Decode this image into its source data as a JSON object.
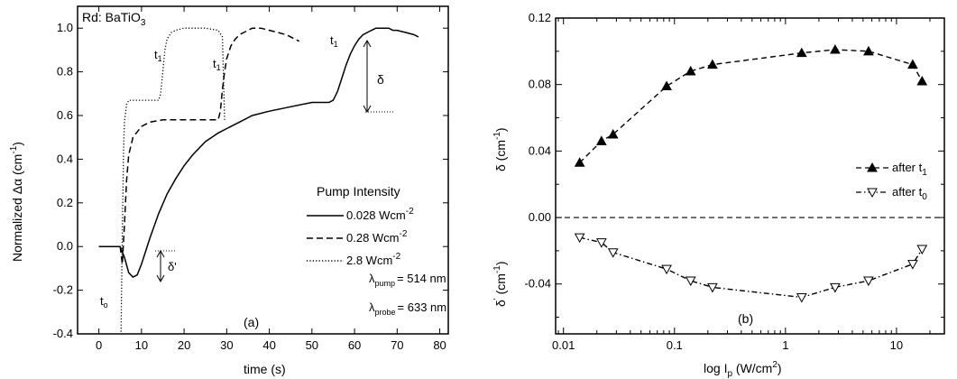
{
  "chart_data": [
    {
      "type": "line",
      "panel_label": "(a)",
      "sample_label": "Rd: BaTiO",
      "sample_sub": "3",
      "xlabel": "time  (s)",
      "ylabel_main": "Normalized Δα (cm",
      "ylabel_sup": "-1",
      "ylabel_end": ")",
      "xlim": [
        -5,
        82
      ],
      "ylim": [
        -0.4,
        1.1
      ],
      "xticks": [
        "0",
        "10",
        "20",
        "30",
        "40",
        "50",
        "60",
        "70",
        "80"
      ],
      "yticks": [
        "-0.4",
        "-0.2",
        "0.0",
        "0.2",
        "0.4",
        "0.6",
        "0.8",
        "1.0"
      ],
      "legend_title": "Pump Intensity",
      "legend_loc": "center-right",
      "series": [
        {
          "name": "0.028 Wcm",
          "name_sup": "-2",
          "style": "solid",
          "x": [
            0,
            5,
            6,
            7,
            8,
            9,
            10,
            12,
            14,
            16,
            18,
            20,
            22,
            25,
            28,
            30,
            33,
            36,
            40,
            45,
            50,
            54,
            55,
            56,
            57,
            58,
            59,
            60,
            61,
            62,
            63,
            64,
            65,
            66,
            67,
            68,
            69,
            70,
            72,
            74,
            75
          ],
          "y": [
            0.0,
            0.0,
            -0.05,
            -0.12,
            -0.14,
            -0.13,
            -0.08,
            0.04,
            0.15,
            0.24,
            0.31,
            0.37,
            0.42,
            0.48,
            0.52,
            0.54,
            0.57,
            0.6,
            0.62,
            0.64,
            0.66,
            0.66,
            0.67,
            0.71,
            0.77,
            0.83,
            0.88,
            0.92,
            0.95,
            0.97,
            0.98,
            0.99,
            1.0,
            1.0,
            1.0,
            1.0,
            0.99,
            0.99,
            0.98,
            0.97,
            0.96
          ]
        },
        {
          "name": "0.28 Wcm",
          "name_sup": "-2",
          "style": "dashed",
          "x": [
            5,
            5.5,
            6,
            6.5,
            7,
            8,
            10,
            12,
            15,
            18,
            22,
            25,
            28,
            28.5,
            29,
            29.5,
            30,
            31,
            32,
            33,
            34,
            35,
            36,
            37,
            38,
            40,
            42,
            44,
            46,
            47
          ],
          "y": [
            0.0,
            -0.08,
            0.1,
            0.3,
            0.42,
            0.5,
            0.55,
            0.57,
            0.58,
            0.58,
            0.58,
            0.58,
            0.58,
            0.62,
            0.72,
            0.8,
            0.86,
            0.92,
            0.95,
            0.97,
            0.98,
            0.99,
            1.0,
            1.0,
            1.0,
            0.99,
            0.98,
            0.97,
            0.95,
            0.94
          ]
        },
        {
          "name": "2.8 Wcm",
          "name_sup": "-2",
          "style": "dotted",
          "x": [
            5.2,
            5.4,
            5.6,
            5.8,
            6.0,
            6.5,
            7,
            8,
            9,
            10,
            12,
            14,
            14.5,
            15,
            15.5,
            16,
            17,
            18,
            20,
            22,
            25,
            28,
            29,
            29.5
          ],
          "y": [
            -0.39,
            -0.1,
            0.2,
            0.45,
            0.57,
            0.65,
            0.67,
            0.67,
            0.67,
            0.67,
            0.67,
            0.67,
            0.7,
            0.8,
            0.9,
            0.95,
            0.98,
            0.99,
            1.0,
            1.0,
            1.0,
            0.99,
            0.96,
            0.58
          ]
        }
      ],
      "annotations": {
        "t0": "t",
        "t0_sub": "o",
        "t1": "t",
        "t1_sub": "1",
        "delta": "δ",
        "delta_prime": "δ'",
        "pump_label": "λ",
        "pump_sub": "pump",
        "pump_value": "= 514 nm",
        "probe_label": "λ",
        "probe_sub": "probe",
        "probe_value": "= 633 nm"
      }
    },
    {
      "type": "line",
      "panel_label": "(b)",
      "xlabel_main": "log I",
      "xlabel_sub": "p",
      "xlabel_end": " (W/cm",
      "xlabel_sup": "2",
      "xlabel_close": ")",
      "x_scale": "log",
      "xlim": [
        0.0085,
        27
      ],
      "ylim": [
        -0.07,
        0.12
      ],
      "xticks": [
        "0.01",
        "0.1",
        "1",
        "10"
      ],
      "yticks": [
        "-0.04",
        "0.00",
        "0.04",
        "0.08",
        "0.12"
      ],
      "ylabel_upper": "δ (cm",
      "ylabel_upper_sup": "-1",
      "ylabel_upper_end": ")",
      "ylabel_lower": "δ",
      "ylabel_lower_sup": "'",
      "ylabel_lower_end": " (cm",
      "ylabel_lower_sup2": "-1",
      "ylabel_lower_close": ")",
      "zero_line": true,
      "legend_loc": "right",
      "series": [
        {
          "name": "after t",
          "name_sub": "1",
          "marker": "filled-up-triangle",
          "style": "dashed",
          "x": [
            0.014,
            0.022,
            0.028,
            0.085,
            0.14,
            0.22,
            1.4,
            2.8,
            5.6,
            14,
            17
          ],
          "y": [
            0.033,
            0.046,
            0.05,
            0.079,
            0.088,
            0.092,
            0.099,
            0.101,
            0.1,
            0.092,
            0.082
          ]
        },
        {
          "name": "after t",
          "name_sub": "0",
          "marker": "open-down-triangle",
          "style": "dashdot",
          "x": [
            0.014,
            0.022,
            0.028,
            0.085,
            0.14,
            0.22,
            1.4,
            2.8,
            5.6,
            14,
            17
          ],
          "y": [
            -0.012,
            -0.015,
            -0.021,
            -0.031,
            -0.038,
            -0.042,
            -0.048,
            -0.042,
            -0.038,
            -0.028,
            -0.019
          ]
        }
      ]
    }
  ]
}
